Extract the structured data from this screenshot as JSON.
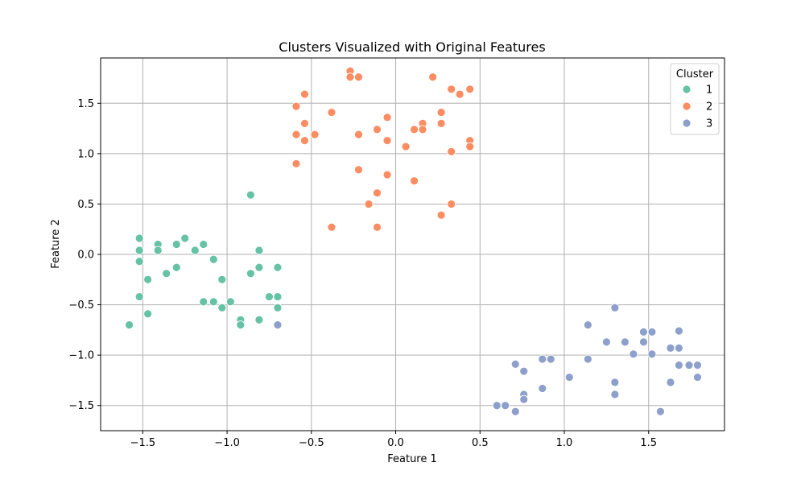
{
  "chart_data": {
    "type": "scatter",
    "title": "Clusters Visualized with Original Features",
    "xlabel": "Feature 1",
    "ylabel": "Feature 2",
    "xlim": [
      -1.75,
      1.95
    ],
    "ylim": [
      -1.75,
      1.95
    ],
    "xticks": [
      -1.5,
      -1.0,
      -0.5,
      0.0,
      0.5,
      1.0,
      1.5
    ],
    "xtick_labels": [
      "−1.5",
      "−1.0",
      "−0.5",
      "0.0",
      "0.5",
      "1.0",
      "1.5"
    ],
    "yticks": [
      -1.5,
      -1.0,
      -0.5,
      0.0,
      0.5,
      1.0,
      1.5
    ],
    "ytick_labels": [
      "−1.5",
      "−1.0",
      "−0.5",
      "0.0",
      "0.5",
      "1.0",
      "1.5"
    ],
    "grid": true,
    "legend": {
      "title": "Cluster",
      "position": "top-right"
    },
    "series": [
      {
        "name": "1",
        "color": "#66c2a5",
        "points": [
          [
            -1.58,
            -0.7
          ],
          [
            -1.52,
            0.16
          ],
          [
            -1.52,
            0.04
          ],
          [
            -1.52,
            -0.07
          ],
          [
            -1.52,
            -0.42
          ],
          [
            -1.47,
            -0.25
          ],
          [
            -1.47,
            -0.59
          ],
          [
            -1.41,
            0.1
          ],
          [
            -1.41,
            0.04
          ],
          [
            -1.36,
            -0.19
          ],
          [
            -1.3,
            0.1
          ],
          [
            -1.3,
            -0.13
          ],
          [
            -1.25,
            0.16
          ],
          [
            -1.19,
            0.04
          ],
          [
            -1.14,
            0.1
          ],
          [
            -1.14,
            -0.47
          ],
          [
            -1.08,
            -0.05
          ],
          [
            -1.08,
            -0.47
          ],
          [
            -1.03,
            -0.25
          ],
          [
            -1.03,
            -0.53
          ],
          [
            -0.98,
            -0.47
          ],
          [
            -0.92,
            -0.65
          ],
          [
            -0.92,
            -0.7
          ],
          [
            -0.86,
            0.59
          ],
          [
            -0.86,
            -0.19
          ],
          [
            -0.81,
            0.04
          ],
          [
            -0.81,
            -0.13
          ],
          [
            -0.81,
            -0.65
          ],
          [
            -0.75,
            -0.42
          ],
          [
            -0.7,
            -0.13
          ],
          [
            -0.7,
            -0.42
          ],
          [
            -0.7,
            -0.53
          ]
        ]
      },
      {
        "name": "2",
        "color": "#fc8d62",
        "points": [
          [
            -0.59,
            1.47
          ],
          [
            -0.59,
            1.19
          ],
          [
            -0.59,
            0.9
          ],
          [
            -0.54,
            1.59
          ],
          [
            -0.54,
            1.3
          ],
          [
            -0.54,
            1.13
          ],
          [
            -0.48,
            1.19
          ],
          [
            -0.38,
            1.41
          ],
          [
            -0.38,
            0.27
          ],
          [
            -0.27,
            1.82
          ],
          [
            -0.27,
            1.76
          ],
          [
            -0.22,
            1.76
          ],
          [
            -0.22,
            1.19
          ],
          [
            -0.22,
            0.84
          ],
          [
            -0.16,
            0.5
          ],
          [
            -0.11,
            1.24
          ],
          [
            -0.11,
            0.61
          ],
          [
            -0.11,
            0.27
          ],
          [
            -0.05,
            1.36
          ],
          [
            -0.05,
            1.13
          ],
          [
            -0.05,
            0.79
          ],
          [
            0.06,
            1.07
          ],
          [
            0.11,
            1.24
          ],
          [
            0.11,
            0.73
          ],
          [
            0.16,
            1.3
          ],
          [
            0.16,
            1.24
          ],
          [
            0.22,
            1.76
          ],
          [
            0.27,
            1.41
          ],
          [
            0.27,
            1.3
          ],
          [
            0.27,
            0.39
          ],
          [
            0.33,
            1.64
          ],
          [
            0.33,
            1.02
          ],
          [
            0.33,
            0.5
          ],
          [
            0.38,
            1.59
          ],
          [
            0.44,
            1.64
          ],
          [
            0.44,
            1.13
          ],
          [
            0.44,
            1.07
          ]
        ]
      },
      {
        "name": "3",
        "color": "#8da0cb",
        "points": [
          [
            -0.7,
            -0.7
          ],
          [
            0.6,
            -1.5
          ],
          [
            0.65,
            -1.5
          ],
          [
            0.71,
            -1.09
          ],
          [
            0.71,
            -1.56
          ],
          [
            0.76,
            -1.16
          ],
          [
            0.76,
            -1.39
          ],
          [
            0.76,
            -1.44
          ],
          [
            0.87,
            -1.04
          ],
          [
            0.87,
            -1.33
          ],
          [
            0.92,
            -1.04
          ],
          [
            1.03,
            -1.22
          ],
          [
            1.14,
            -0.7
          ],
          [
            1.14,
            -1.04
          ],
          [
            1.25,
            -0.87
          ],
          [
            1.3,
            -0.53
          ],
          [
            1.3,
            -1.27
          ],
          [
            1.3,
            -1.39
          ],
          [
            1.36,
            -0.87
          ],
          [
            1.41,
            -0.99
          ],
          [
            1.47,
            -0.77
          ],
          [
            1.47,
            -0.87
          ],
          [
            1.52,
            -0.77
          ],
          [
            1.52,
            -0.99
          ],
          [
            1.57,
            -1.56
          ],
          [
            1.63,
            -0.93
          ],
          [
            1.63,
            -1.27
          ],
          [
            1.68,
            -0.76
          ],
          [
            1.68,
            -0.93
          ],
          [
            1.68,
            -1.1
          ],
          [
            1.74,
            -1.1
          ],
          [
            1.79,
            -1.1
          ],
          [
            1.79,
            -1.22
          ]
        ]
      }
    ]
  }
}
